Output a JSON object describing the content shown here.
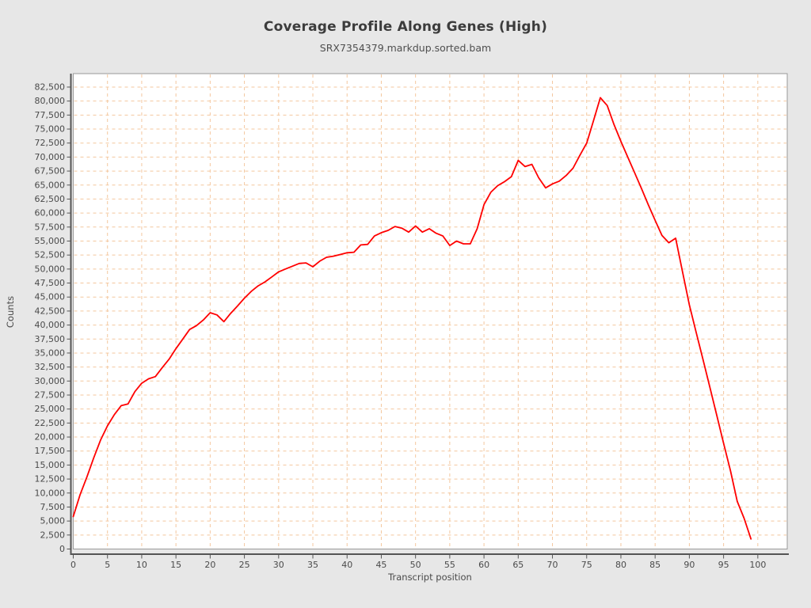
{
  "chart_data": {
    "type": "line",
    "title": "Coverage Profile Along Genes (High)",
    "subtitle": "SRX7354379.markdup.sorted.bam",
    "xlabel": "Transcript position",
    "ylabel": "Counts",
    "xlim": [
      0,
      104.3
    ],
    "ylim": [
      0,
      84900
    ],
    "x_ticks": [
      0,
      5,
      10,
      15,
      20,
      25,
      30,
      35,
      40,
      45,
      50,
      55,
      60,
      65,
      70,
      75,
      80,
      85,
      90,
      95,
      100
    ],
    "y_tick_step": 2500,
    "y_tick_max": 82500,
    "grid": "dashed",
    "legend": "none",
    "series": [
      {
        "name": "SRX7354379.markdup.sorted.bam",
        "x_start": 0,
        "x_step": 1,
        "values": [
          5800,
          9700,
          12900,
          16300,
          19500,
          22000,
          24000,
          25600,
          25900,
          28100,
          29600,
          30400,
          30800,
          32400,
          33900,
          35800,
          37500,
          39200,
          39900,
          40900,
          42200,
          41800,
          40600,
          42100,
          43400,
          44800,
          46000,
          47000,
          47700,
          48600,
          49500,
          50000,
          50500,
          51000,
          51100,
          50400,
          51400,
          52100,
          52300,
          52600,
          52900,
          53000,
          54300,
          54400,
          55900,
          56500,
          56900,
          57600,
          57300,
          56600,
          57700,
          56600,
          57200,
          56400,
          55900,
          54200,
          55000,
          54500,
          54500,
          57200,
          61500,
          63700,
          64900,
          65600,
          66500,
          69400,
          68300,
          68700,
          66300,
          64500,
          65200,
          65700,
          66700,
          68000,
          70300,
          72500,
          76500,
          80600,
          79200,
          75800,
          72800,
          70000,
          67200,
          64400,
          61500,
          58700,
          56000,
          54700,
          55500,
          49500,
          43600,
          38700,
          33800,
          28900,
          23900,
          18900,
          14000,
          8500,
          5500,
          1800
        ]
      }
    ],
    "colors": {
      "page_background": "#e7e7e7",
      "plot_background": "#ffffff",
      "grid": "#f4c79e",
      "plot_border": "#9a9a9a",
      "axis_line": "#545454",
      "tick_text": "#4a4a4a",
      "series_line": "#ff0000",
      "title_text": "#3c3c3c",
      "subtitle_text": "#4f4f4f"
    }
  }
}
